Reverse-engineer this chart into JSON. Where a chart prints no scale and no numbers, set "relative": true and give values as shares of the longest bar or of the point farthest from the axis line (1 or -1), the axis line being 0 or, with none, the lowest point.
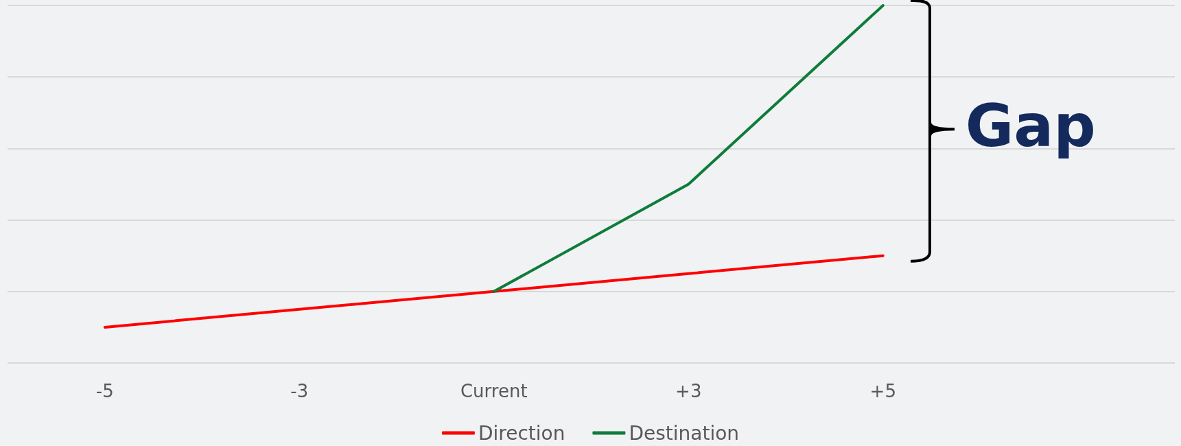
{
  "chart_data": {
    "type": "line",
    "relative": true,
    "categories": [
      "-5",
      "-3",
      "Current",
      "+3",
      "+5",
      null
    ],
    "series": [
      {
        "name": "Direction",
        "color": "#ff0000",
        "values": [
          0.1,
          0.15,
          0.2,
          0.25,
          0.3,
          null
        ]
      },
      {
        "name": "Destination",
        "color": "#0e7c3a",
        "values": [
          null,
          null,
          0.2,
          0.5,
          1,
          null
        ]
      }
    ],
    "annotations": [
      "Gap"
    ],
    "grid": "y",
    "legend": "bottom",
    "marker": "none",
    "line_style": "solid"
  }
}
